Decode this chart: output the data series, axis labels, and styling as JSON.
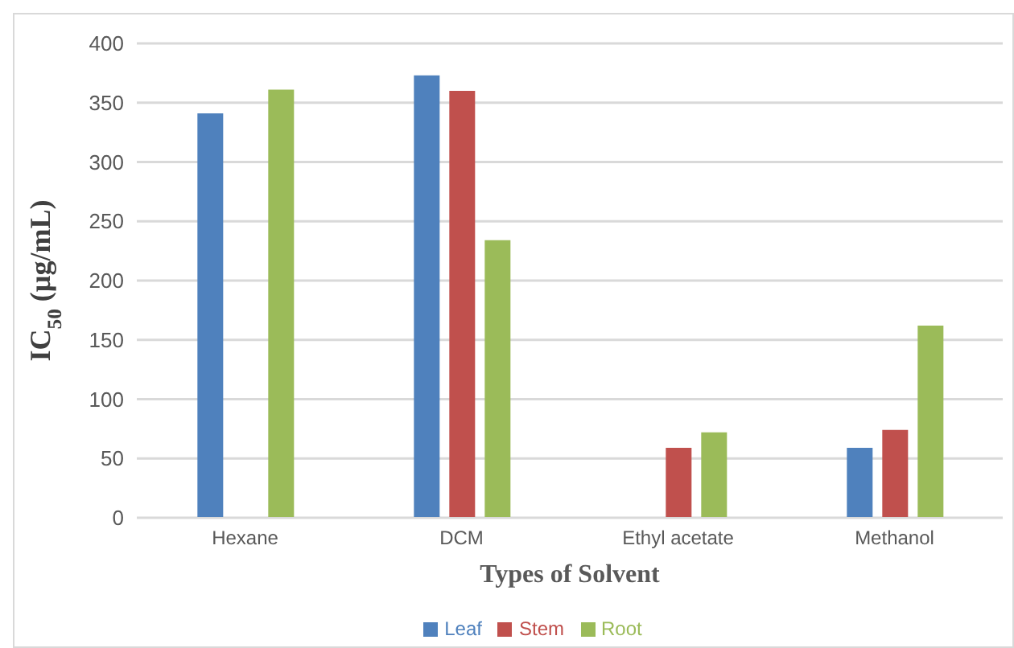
{
  "chart_data": {
    "type": "bar",
    "xlabel": "Types of Solvent",
    "ylabel": "IC$_{50}$ (µg/mL)",
    "categories": [
      "Hexane",
      "DCM",
      "Ethyl acetate",
      "Methanol"
    ],
    "series": [
      {
        "name": "Leaf",
        "color": "#4f81bd",
        "values": [
          341,
          373,
          null,
          59
        ]
      },
      {
        "name": "Stem",
        "color": "#c0504d",
        "values": [
          null,
          360,
          59,
          74
        ]
      },
      {
        "name": "Root",
        "color": "#9bbb59",
        "values": [
          361,
          234,
          72,
          162
        ]
      }
    ],
    "ylim": [
      0,
      400
    ],
    "yticks": [
      0,
      50,
      100,
      150,
      200,
      250,
      300,
      350,
      400
    ],
    "grid": "y",
    "legend": "bottom"
  }
}
